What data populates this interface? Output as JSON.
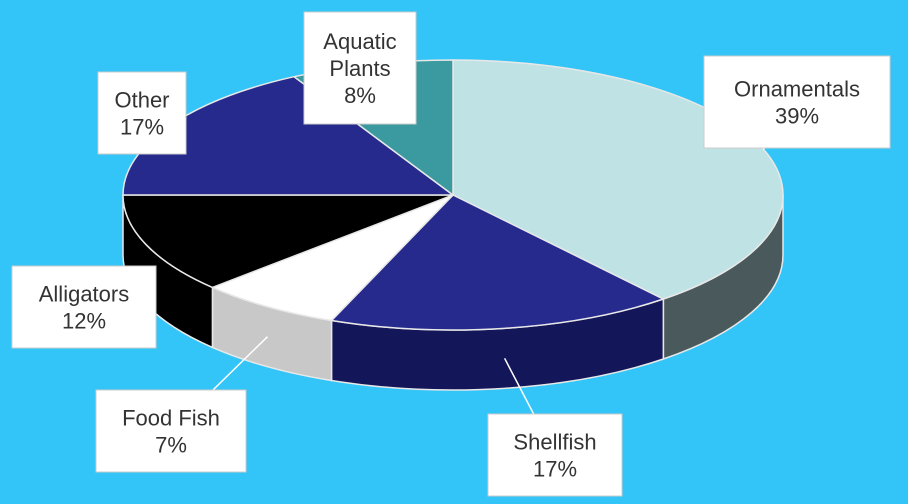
{
  "chart_data": {
    "type": "pie",
    "title": "",
    "three_d": true,
    "labels_show_percent": true,
    "slices": [
      {
        "label": "Ornamentals",
        "value": 39,
        "color": "#bfe2e4",
        "side_color": "#4a5a5c"
      },
      {
        "label": "Shellfish",
        "value": 17,
        "color": "#262a8c",
        "side_color": "#14165a"
      },
      {
        "label": "Food Fish",
        "value": 7,
        "color": "#ffffff",
        "side_color": "#c8c8c8"
      },
      {
        "label": "Alligators",
        "value": 12,
        "color": "#000000",
        "side_color": "#000000"
      },
      {
        "label": "Other",
        "value": 17,
        "color": "#262a8c",
        "side_color": "#14165a"
      },
      {
        "label": "Aquatic Plants",
        "value": 8,
        "color": "#3a9aa0",
        "side_color": "#2a7076"
      }
    ]
  }
}
